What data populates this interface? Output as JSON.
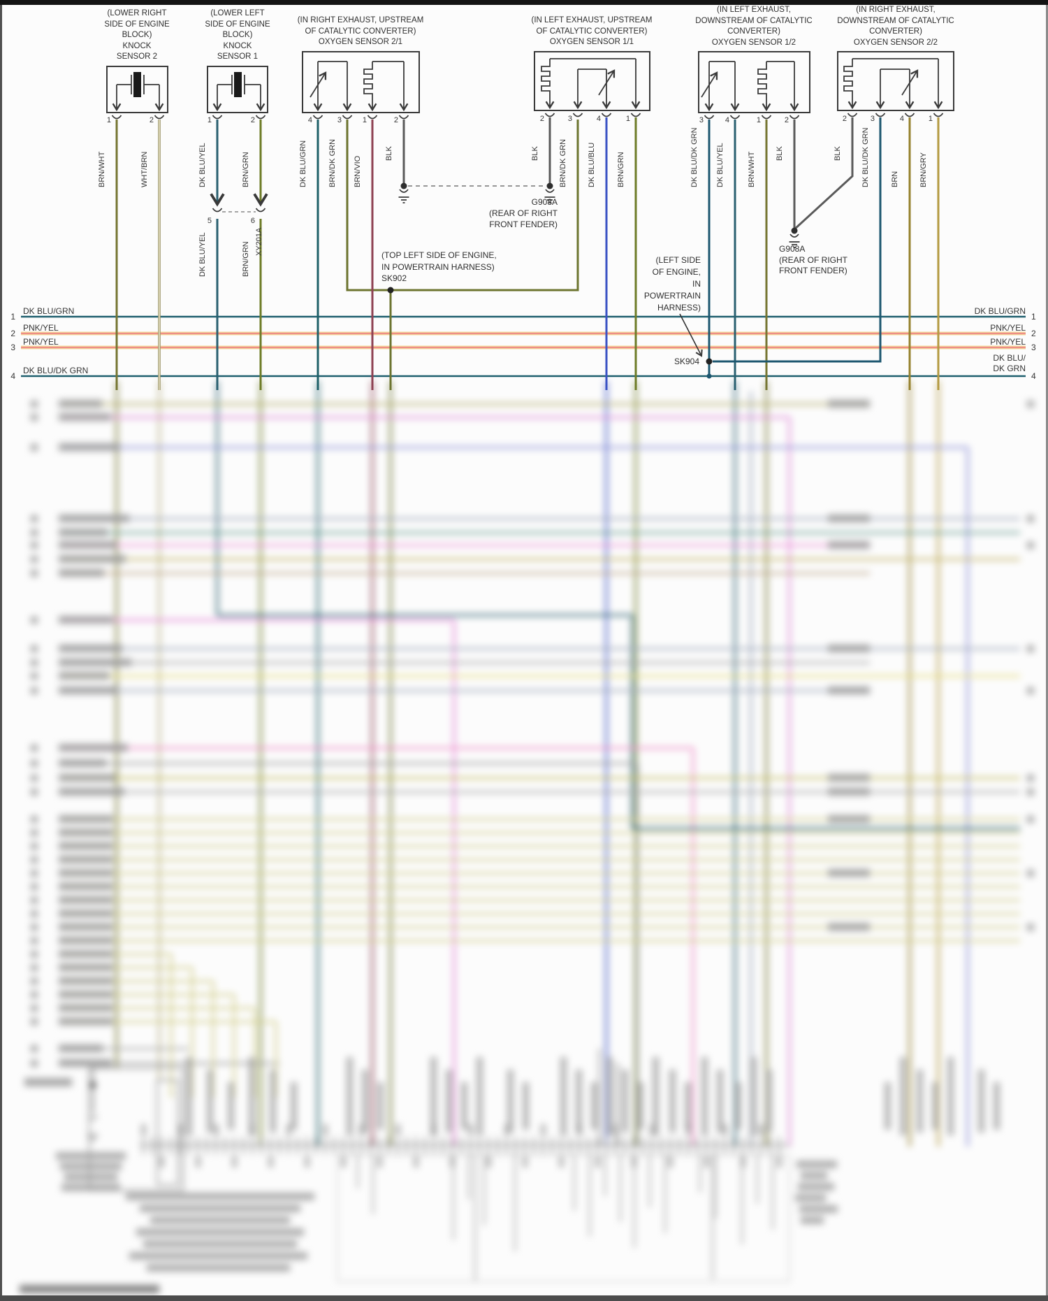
{
  "colors": {
    "diagram_line": "#3a3a3a",
    "bus_teal": "#1e5f6e",
    "pnk_yel_pink": "#ee8f86",
    "pnk_yel_halo": "#f3dd9a",
    "wire_black": "#5a5a5a",
    "wire_blue": "#3a52c4",
    "wire_maroon": "#8e4152",
    "wire_olive": "#6d7530",
    "wire_dk_teal": "#1d5770"
  },
  "sensors": [
    {
      "header": [
        "(LOWER RIGHT",
        "SIDE OF ENGINE",
        "BLOCK)",
        "KNOCK",
        "SENSOR 2"
      ],
      "pins": [
        {
          "num": "1",
          "wire": "BRN/WHT"
        },
        {
          "num": "2",
          "wire": "WHT/BRN"
        }
      ]
    },
    {
      "header": [
        "(LOWER LEFT",
        "SIDE OF ENGINE",
        "BLOCK)",
        "KNOCK",
        "SENSOR 1"
      ],
      "pins": [
        {
          "num": "1",
          "wire": "DK BLU/YEL"
        },
        {
          "num": "2",
          "wire": "BRN/GRN"
        }
      ]
    },
    {
      "header": [
        "(IN RIGHT EXHAUST, UPSTREAM",
        "OF CATALYTIC CONVERTER)",
        "OXYGEN SENSOR 2/1"
      ],
      "pins": [
        {
          "num": "4",
          "wire": "DK BLU/GRN"
        },
        {
          "num": "3",
          "wire": "BRN/DK GRN"
        },
        {
          "num": "1",
          "wire": "BRN/VIO"
        },
        {
          "num": "2",
          "wire": "BLK"
        }
      ]
    },
    {
      "header": [
        "(IN LEFT EXHAUST, UPSTREAM",
        "OF CATALYTIC CONVERTER)",
        "OXYGEN SENSOR 1/1"
      ],
      "pins": [
        {
          "num": "2",
          "wire": "BLK"
        },
        {
          "num": "3",
          "wire": "BRN/DK GRN"
        },
        {
          "num": "4",
          "wire": "DK BLU/BLU"
        },
        {
          "num": "1",
          "wire": "BRN/GRN"
        }
      ]
    },
    {
      "header": [
        "(IN LEFT EXHAUST,",
        "DOWNSTREAM OF CATALYTIC",
        "CONVERTER)",
        "OXYGEN SENSOR 1/2"
      ],
      "pins": [
        {
          "num": "3",
          "wire": "DK BLU/DK GRN"
        },
        {
          "num": "4",
          "wire": "DK BLU/YEL"
        },
        {
          "num": "1",
          "wire": "BRN/WHT"
        },
        {
          "num": "2",
          "wire": "BLK"
        }
      ]
    },
    {
      "header": [
        "(IN RIGHT EXHAUST,",
        "DOWNSTREAM OF CATALYTIC",
        "CONVERTER)",
        "OXYGEN SENSOR 2/2"
      ],
      "pins": [
        {
          "num": "2",
          "wire": "BLK"
        },
        {
          "num": "3",
          "wire": "DK BLU/DK GRN"
        },
        {
          "num": "4",
          "wire": "BRN"
        },
        {
          "num": "1",
          "wire": "BRN/GRY"
        }
      ]
    }
  ],
  "inline_connector": {
    "label": "XY201A",
    "pins": [
      {
        "num": "5",
        "wire": "DK BLU/YEL"
      },
      {
        "num": "6",
        "wire": "BRN/GRN"
      }
    ]
  },
  "grounds": [
    {
      "label": "G908A",
      "note": [
        "(REAR OF RIGHT",
        "FRONT FENDER)"
      ]
    },
    {
      "label": "G908A",
      "note": [
        "(REAR OF RIGHT",
        "FRONT FENDER)"
      ]
    }
  ],
  "splices": [
    {
      "label": "SK902",
      "note": [
        "(TOP LEFT SIDE OF ENGINE,",
        "IN POWERTRAIN HARNESS)"
      ]
    },
    {
      "label": "SK904",
      "note": [
        "(LEFT SIDE",
        "OF ENGINE,",
        "IN",
        "POWERTRAIN",
        "HARNESS)"
      ]
    }
  ],
  "buses": [
    {
      "num": "1",
      "left": "DK BLU/GRN",
      "right": [
        "DK BLU/GRN"
      ]
    },
    {
      "num": "2",
      "left": "PNK/YEL",
      "right": [
        "PNK/YEL"
      ]
    },
    {
      "num": "3",
      "left": "PNK/YEL",
      "right": [
        "PNK/YEL"
      ]
    },
    {
      "num": "4",
      "left": "DK BLU/DK GRN",
      "right": [
        "DK BLU/",
        "DK GRN"
      ]
    }
  ]
}
